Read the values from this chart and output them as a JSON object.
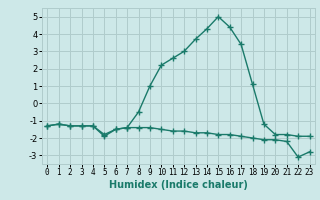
{
  "xlabel": "Humidex (Indice chaleur)",
  "x": [
    0,
    1,
    2,
    3,
    4,
    5,
    6,
    7,
    8,
    9,
    10,
    11,
    12,
    13,
    14,
    15,
    16,
    17,
    18,
    19,
    20,
    21,
    22,
    23
  ],
  "line1": [
    -1.3,
    -1.2,
    -1.3,
    -1.3,
    -1.3,
    -1.8,
    -1.5,
    -1.4,
    -0.5,
    1.0,
    2.2,
    2.6,
    3.0,
    3.7,
    4.3,
    5.0,
    4.4,
    3.4,
    1.1,
    -1.2,
    -1.8,
    -1.8,
    -1.9,
    -1.9
  ],
  "line2": [
    -1.3,
    -1.2,
    -1.3,
    -1.3,
    -1.3,
    -1.9,
    -1.5,
    -1.4,
    -1.4,
    -1.4,
    -1.5,
    -1.6,
    -1.6,
    -1.7,
    -1.7,
    -1.8,
    -1.8,
    -1.9,
    -2.0,
    -2.1,
    -2.1,
    -2.2,
    -3.1,
    -2.8
  ],
  "line_color": "#1a7a6a",
  "background_color": "#cde8e8",
  "grid_color": "#b0cccc",
  "ylim": [
    -3.5,
    5.5
  ],
  "yticks": [
    -3,
    -2,
    -1,
    0,
    1,
    2,
    3,
    4,
    5
  ],
  "xlim": [
    -0.5,
    23.5
  ],
  "xticks": [
    0,
    1,
    2,
    3,
    4,
    5,
    6,
    7,
    8,
    9,
    10,
    11,
    12,
    13,
    14,
    15,
    16,
    17,
    18,
    19,
    20,
    21,
    22,
    23
  ],
  "marker": "+",
  "markersize": 4,
  "linewidth": 1.0,
  "tick_fontsize": 6,
  "xlabel_fontsize": 7,
  "xlabel_bold": true
}
